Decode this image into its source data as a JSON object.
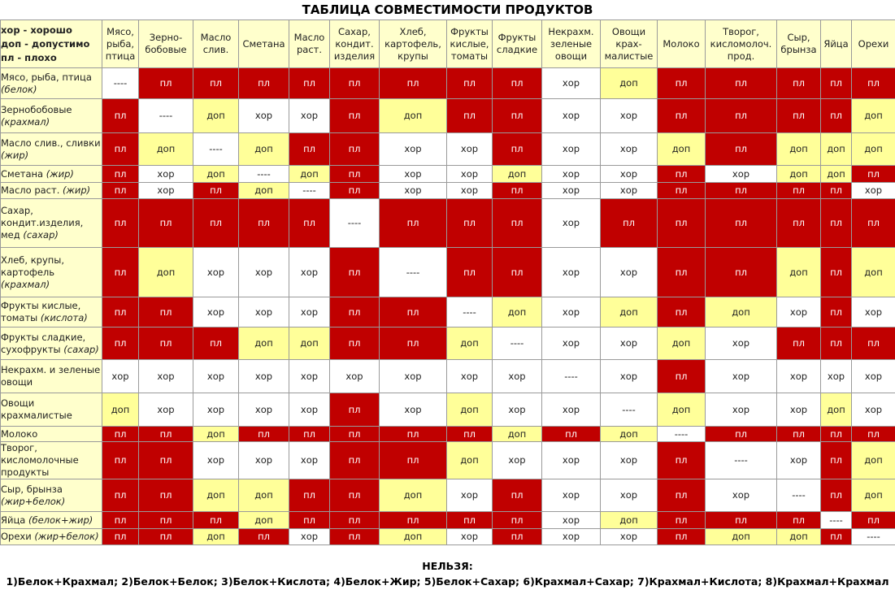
{
  "title": "ТАБЛИЦА СОВМЕСТИМОСТИ ПРОДУКТОВ",
  "legend": [
    "хор - хорошо",
    "доп - допустимо",
    "пл - плохо"
  ],
  "columns": [
    "Мясо, рыба, птица",
    "Зерно-бобовые",
    "Масло слив.",
    "Сметана",
    "Масло раст.",
    "Сахар, кондит. изделия",
    "Хлеб, картофель, крупы",
    "Фрукты кислые, томаты",
    "Фрукты сладкие",
    "Некрахм. зеленые овощи",
    "Овощи крах-малистые",
    "Молоко",
    "Творог, кисломолоч. прод.",
    "Сыр, брынза",
    "Яйца",
    "Орехи"
  ],
  "rows": [
    {
      "name": "Мясо, рыба, птица",
      "note": "(белок)",
      "cells": [
        "----",
        "пл",
        "пл",
        "пл",
        "пл",
        "пл",
        "пл",
        "пл",
        "пл",
        "хор",
        "доп",
        "пл",
        "пл",
        "пл",
        "пл",
        "пл"
      ]
    },
    {
      "name": "Зернобобовые",
      "note": "(крахмал)",
      "cells": [
        "пл",
        "----",
        "доп",
        "хор",
        "хор",
        "пл",
        "доп",
        "пл",
        "пл",
        "хор",
        "хор",
        "пл",
        "пл",
        "пл",
        "пл",
        "доп"
      ]
    },
    {
      "name": "Масло слив., сливки",
      "note": "(жир)",
      "cells": [
        "пл",
        "доп",
        "----",
        "доп",
        "пл",
        "пл",
        "хор",
        "хор",
        "пл",
        "хор",
        "хор",
        "доп",
        "пл",
        "доп",
        "доп",
        "доп"
      ]
    },
    {
      "name": "Сметана",
      "note": "(жир)",
      "cells": [
        "пл",
        "хор",
        "доп",
        "----",
        "доп",
        "пл",
        "хор",
        "хор",
        "доп",
        "хор",
        "хор",
        "пл",
        "хор",
        "доп",
        "доп",
        "пл"
      ]
    },
    {
      "name": "Масло раст.",
      "note": "(жир)",
      "cells": [
        "пл",
        "хор",
        "пл",
        "доп",
        "----",
        "пл",
        "хор",
        "хор",
        "пл",
        "хор",
        "хор",
        "пл",
        "пл",
        "пл",
        "пл",
        "хор"
      ]
    },
    {
      "name": "Сахар, кондит.изделия, мед",
      "note": "(сахар)",
      "cells": [
        "пл",
        "пл",
        "пл",
        "пл",
        "пл",
        "----",
        "пл",
        "пл",
        "пл",
        "хор",
        "пл",
        "пл",
        "пл",
        "пл",
        "пл",
        "пл"
      ]
    },
    {
      "name": "Хлеб, крупы, картофель",
      "note": "(крахмал)",
      "cells": [
        "пл",
        "доп",
        "хор",
        "хор",
        "хор",
        "пл",
        "----",
        "пл",
        "пл",
        "хор",
        "хор",
        "пл",
        "пл",
        "доп",
        "пл",
        "доп"
      ]
    },
    {
      "name": "Фрукты кислые, томаты",
      "note": "(кислота)",
      "cells": [
        "пл",
        "пл",
        "хор",
        "хор",
        "хор",
        "пл",
        "пл",
        "----",
        "доп",
        "хор",
        "доп",
        "пл",
        "доп",
        "хор",
        "пл",
        "хор"
      ]
    },
    {
      "name": "Фрукты сладкие, сухофрукты",
      "note": "(сахар)",
      "cells": [
        "пл",
        "пл",
        "пл",
        "доп",
        "доп",
        "пл",
        "пл",
        "доп",
        "----",
        "хор",
        "хор",
        "доп",
        "хор",
        "пл",
        "пл",
        "пл"
      ]
    },
    {
      "name": "Некрахм. и зеленые овощи",
      "note": "",
      "cells": [
        "хор",
        "хор",
        "хор",
        "хор",
        "хор",
        "хор",
        "хор",
        "хор",
        "хор",
        "----",
        "хор",
        "пл",
        "хор",
        "хор",
        "хор",
        "хор"
      ]
    },
    {
      "name": "Овощи крахмалистые",
      "note": "",
      "cells": [
        "доп",
        "хор",
        "хор",
        "хор",
        "хор",
        "пл",
        "хор",
        "доп",
        "хор",
        "хор",
        "----",
        "доп",
        "хор",
        "хор",
        "доп",
        "хор"
      ]
    },
    {
      "name": "Молоко",
      "note": "",
      "cells": [
        "пл",
        "пл",
        "доп",
        "пл",
        "пл",
        "пл",
        "пл",
        "пл",
        "доп",
        "пл",
        "доп",
        "----",
        "пл",
        "пл",
        "пл",
        "пл"
      ]
    },
    {
      "name": "Творог, кисломолочные продукты",
      "note": "",
      "cells": [
        "пл",
        "пл",
        "хор",
        "хор",
        "хор",
        "пл",
        "пл",
        "доп",
        "хор",
        "хор",
        "хор",
        "пл",
        "----",
        "хор",
        "пл",
        "доп"
      ]
    },
    {
      "name": "Сыр, брынза",
      "note": "(жир+белок)",
      "cells": [
        "пл",
        "пл",
        "доп",
        "доп",
        "пл",
        "пл",
        "доп",
        "хор",
        "пл",
        "хор",
        "хор",
        "пл",
        "хор",
        "----",
        "пл",
        "доп"
      ]
    },
    {
      "name": "Яйца",
      "note": "(белок+жир)",
      "cells": [
        "пл",
        "пл",
        "пл",
        "доп",
        "пл",
        "пл",
        "пл",
        "пл",
        "пл",
        "хор",
        "доп",
        "пл",
        "пл",
        "пл",
        "----",
        "пл"
      ]
    },
    {
      "name": "Орехи",
      "note": "(жир+белок)",
      "cells": [
        "пл",
        "пл",
        "доп",
        "пл",
        "хор",
        "пл",
        "доп",
        "хор",
        "пл",
        "хор",
        "хор",
        "пл",
        "доп",
        "доп",
        "пл",
        "----"
      ]
    }
  ],
  "footer": {
    "heading": "НЕЛЬЗЯ:",
    "text": "1)Белок+Крахмал; 2)Белок+Белок; 3)Белок+Кислота; 4)Белок+Жир; 5)Белок+Сахар; 6)Крахмал+Сахар; 7)Крахмал+Кислота; 8)Крахмал+Крахмал"
  }
}
